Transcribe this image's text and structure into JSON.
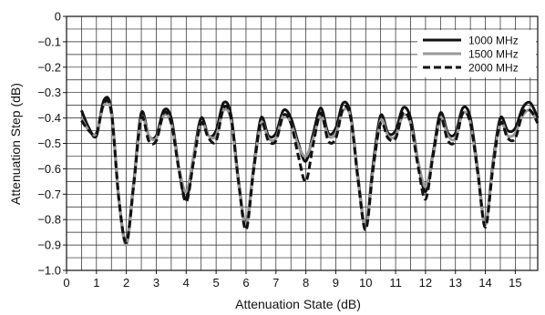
{
  "chart_data": {
    "type": "line",
    "title": "",
    "xlabel": "Attenuation State (dB)",
    "ylabel": "Attenuation Step (dB)",
    "xlim": [
      0,
      15.75
    ],
    "ylim": [
      -1.0,
      0
    ],
    "xticks": [
      0,
      1,
      2,
      3,
      4,
      5,
      6,
      7,
      8,
      9,
      10,
      11,
      12,
      13,
      14,
      15
    ],
    "xtick_labels": [
      "0",
      "1",
      "2",
      "3",
      "4",
      "5",
      "6",
      "7",
      "8",
      "9",
      "10",
      "11",
      "12",
      "13",
      "14",
      "15"
    ],
    "yticks": [
      0,
      -0.1,
      -0.2,
      -0.3,
      -0.4,
      -0.5,
      -0.6,
      -0.7,
      -0.8,
      -0.9,
      -1.0
    ],
    "ytick_labels": [
      "0",
      "−0.1",
      "−0.2",
      "−0.3",
      "−0.4",
      "−0.5",
      "−0.6",
      "−0.7",
      "−0.8",
      "−0.9",
      "−1.0"
    ],
    "grid": true,
    "grid_step_x": 0.5,
    "grid_step_y": 0.05,
    "legend_position": "top-right",
    "x": [
      0.5,
      0.75,
      1.0,
      1.25,
      1.5,
      1.75,
      2.0,
      2.25,
      2.5,
      2.75,
      3.0,
      3.25,
      3.5,
      3.75,
      4.0,
      4.25,
      4.5,
      4.75,
      5.0,
      5.25,
      5.5,
      5.75,
      6.0,
      6.25,
      6.5,
      6.75,
      7.0,
      7.25,
      7.5,
      7.75,
      8.0,
      8.25,
      8.5,
      8.75,
      9.0,
      9.25,
      9.5,
      9.75,
      10.0,
      10.25,
      10.5,
      10.75,
      11.0,
      11.25,
      11.5,
      11.75,
      12.0,
      12.25,
      12.5,
      12.75,
      13.0,
      13.25,
      13.5,
      13.75,
      14.0,
      14.25,
      14.5,
      14.75,
      15.0,
      15.25,
      15.5,
      15.75
    ],
    "series": [
      {
        "name": "1000 MHz",
        "color": "#111111",
        "dash": "solid",
        "values": [
          -0.37,
          -0.44,
          -0.47,
          -0.33,
          -0.37,
          -0.72,
          -0.89,
          -0.65,
          -0.38,
          -0.47,
          -0.47,
          -0.37,
          -0.4,
          -0.59,
          -0.72,
          -0.55,
          -0.4,
          -0.47,
          -0.45,
          -0.34,
          -0.39,
          -0.65,
          -0.82,
          -0.6,
          -0.4,
          -0.47,
          -0.46,
          -0.37,
          -0.4,
          -0.5,
          -0.57,
          -0.46,
          -0.36,
          -0.46,
          -0.44,
          -0.34,
          -0.39,
          -0.64,
          -0.83,
          -0.58,
          -0.39,
          -0.46,
          -0.45,
          -0.36,
          -0.4,
          -0.57,
          -0.69,
          -0.54,
          -0.38,
          -0.46,
          -0.46,
          -0.36,
          -0.4,
          -0.61,
          -0.82,
          -0.58,
          -0.4,
          -0.45,
          -0.44,
          -0.36,
          -0.34,
          -0.4
        ]
      },
      {
        "name": "1500 MHz",
        "color": "#999999",
        "dash": "solid",
        "values": [
          -0.4,
          -0.45,
          -0.46,
          -0.35,
          -0.38,
          -0.72,
          -0.9,
          -0.66,
          -0.4,
          -0.47,
          -0.48,
          -0.39,
          -0.42,
          -0.59,
          -0.69,
          -0.55,
          -0.42,
          -0.47,
          -0.47,
          -0.37,
          -0.41,
          -0.66,
          -0.82,
          -0.61,
          -0.42,
          -0.48,
          -0.48,
          -0.39,
          -0.42,
          -0.51,
          -0.55,
          -0.48,
          -0.39,
          -0.47,
          -0.46,
          -0.37,
          -0.4,
          -0.65,
          -0.83,
          -0.6,
          -0.41,
          -0.47,
          -0.47,
          -0.39,
          -0.42,
          -0.57,
          -0.67,
          -0.55,
          -0.4,
          -0.47,
          -0.48,
          -0.38,
          -0.42,
          -0.62,
          -0.82,
          -0.59,
          -0.42,
          -0.47,
          -0.46,
          -0.39,
          -0.37,
          -0.42
        ]
      },
      {
        "name": "2000 MHz",
        "color": "#111111",
        "dash": "dashed",
        "values": [
          -0.41,
          -0.45,
          -0.46,
          -0.34,
          -0.38,
          -0.72,
          -0.89,
          -0.66,
          -0.4,
          -0.49,
          -0.49,
          -0.38,
          -0.42,
          -0.6,
          -0.73,
          -0.57,
          -0.42,
          -0.48,
          -0.49,
          -0.36,
          -0.4,
          -0.65,
          -0.84,
          -0.61,
          -0.42,
          -0.49,
          -0.49,
          -0.39,
          -0.42,
          -0.55,
          -0.65,
          -0.5,
          -0.38,
          -0.49,
          -0.48,
          -0.36,
          -0.4,
          -0.65,
          -0.84,
          -0.6,
          -0.42,
          -0.48,
          -0.48,
          -0.38,
          -0.42,
          -0.59,
          -0.72,
          -0.55,
          -0.4,
          -0.49,
          -0.49,
          -0.38,
          -0.42,
          -0.62,
          -0.83,
          -0.6,
          -0.42,
          -0.48,
          -0.48,
          -0.38,
          -0.37,
          -0.42
        ]
      }
    ]
  }
}
